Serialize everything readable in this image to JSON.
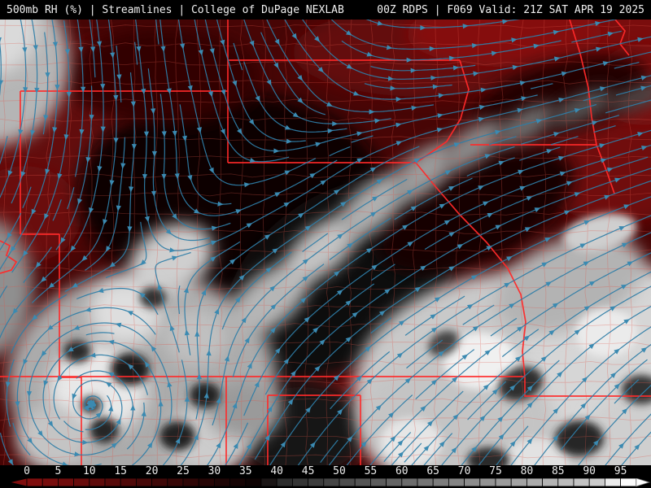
{
  "header": {
    "left": "500mb RH (%) | Streamlines | College of DuPage NEXLAB",
    "right": "00Z RDPS | F069 Valid: 21Z SAT APR 19 2025"
  },
  "colorbar": {
    "tick_labels": [
      "0",
      "5",
      "10",
      "15",
      "20",
      "25",
      "30",
      "35",
      "40",
      "45",
      "50",
      "55",
      "60",
      "65",
      "70",
      "75",
      "80",
      "85",
      "90",
      "95"
    ],
    "unit": "%",
    "segment_step": 2.5
  },
  "colors": {
    "streamline": "#2e7da6",
    "streamline_arrow": "#3b8ab1",
    "state_border": "#ff2a2a",
    "county_border": "#e0544a",
    "dry_base": "#470505",
    "bar_text": "#ededed",
    "background": "#000000"
  }
}
